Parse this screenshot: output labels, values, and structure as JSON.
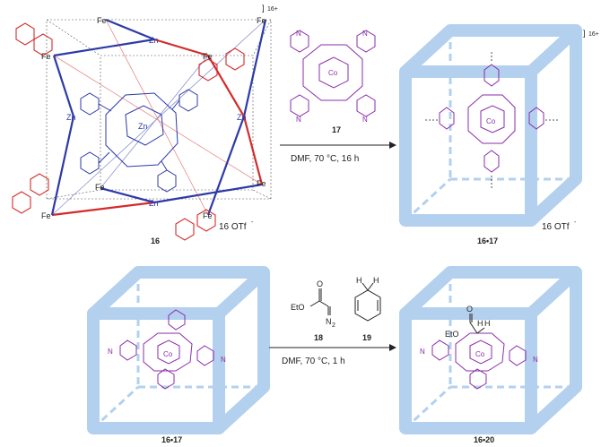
{
  "top_scheme": {
    "cage": {
      "id": "16",
      "charge": "16+",
      "counterion": "16 OTf",
      "counterion_sup": "-",
      "metals": {
        "fe": "Fe",
        "zn": "Zn"
      }
    },
    "reagent": {
      "id": "17",
      "center": "Co",
      "n_label": "N"
    },
    "conditions": "DMF, 70 °C, 16 h",
    "product": {
      "id": "16•17",
      "charge": "16+",
      "counterion": "16 OTf",
      "counterion_sup": "-",
      "center": "Co"
    }
  },
  "bottom_scheme": {
    "left_label": "16•17",
    "reagent_a": {
      "id": "18",
      "eto": "EtO",
      "o": "O",
      "n2": "N",
      "n2_sub": "2"
    },
    "reagent_b": {
      "id": "19",
      "h": "H"
    },
    "conditions": "DMF, 70 °C, 1 h",
    "right_label": "16•20",
    "right_eto": "EtO",
    "right_o": "O",
    "right_h": "H",
    "center": "Co",
    "n_label": "N"
  },
  "colors": {
    "cube": "#b3d1ee",
    "porphyrin": "#8a2ca8",
    "red": "#d42a2a",
    "blue": "#2d3aa8",
    "black": "#222222"
  }
}
